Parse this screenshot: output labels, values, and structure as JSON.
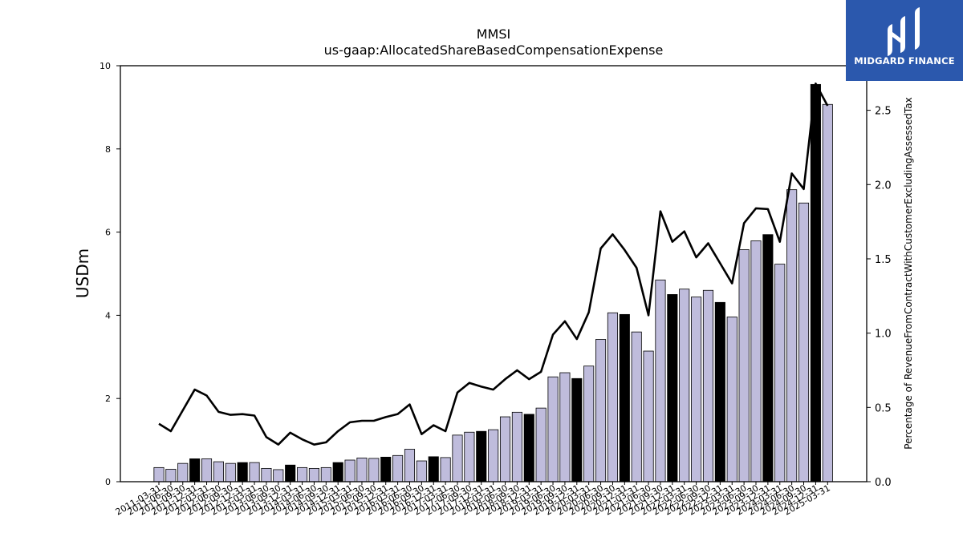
{
  "logo": {
    "text": "MIDGARD FINANCE"
  },
  "chart_data": {
    "type": "bar",
    "title": "MMSI",
    "subtitle": "us-gaap:AllocatedShareBasedCompensationExpense",
    "ylabel": "USDm",
    "y2label": "Percentage of RevenueFromContractWithCustomerExcludingAssessedTax",
    "ylim": [
      0,
      10
    ],
    "y2lim": [
      0,
      2.8
    ],
    "yticks": [
      "0",
      "2",
      "4",
      "6",
      "8",
      "10"
    ],
    "y2ticks": [
      "0.0",
      "0.5",
      "1.0",
      "1.5",
      "2.0",
      "2.5"
    ],
    "categories": [
      "2011-03-31",
      "2011-06-30",
      "2011-09-30",
      "2011-12-31",
      "2012-03-31",
      "2012-06-30",
      "2012-09-30",
      "2012-12-31",
      "2013-03-31",
      "2013-06-30",
      "2013-09-30",
      "2013-12-31",
      "2014-03-31",
      "2014-06-30",
      "2014-09-30",
      "2014-12-31",
      "2015-03-31",
      "2015-06-30",
      "2015-09-30",
      "2015-12-31",
      "2016-03-31",
      "2016-06-30",
      "2016-09-30",
      "2016-12-31",
      "2017-03-31",
      "2017-06-30",
      "2017-09-30",
      "2017-12-31",
      "2018-03-31",
      "2018-06-30",
      "2018-09-30",
      "2018-12-31",
      "2019-03-31",
      "2019-06-30",
      "2019-09-30",
      "2019-12-31",
      "2020-03-31",
      "2020-06-30",
      "2020-09-30",
      "2020-12-31",
      "2021-03-31",
      "2021-06-30",
      "2021-09-30",
      "2021-12-31",
      "2022-03-31",
      "2022-06-30",
      "2022-09-30",
      "2022-12-31",
      "2023-03-31",
      "2023-06-30",
      "2023-09-30",
      "2023-12-31",
      "2024-03-31",
      "2024-06-30",
      "2024-09-30",
      "2024-12-31",
      "2025-03-31"
    ],
    "series": [
      {
        "type": "bar",
        "axis": "left",
        "values": [
          0.34,
          0.3,
          0.44,
          0.55,
          0.55,
          0.48,
          0.44,
          0.46,
          0.46,
          0.32,
          0.29,
          0.4,
          0.34,
          0.32,
          0.34,
          0.46,
          0.52,
          0.57,
          0.56,
          0.59,
          0.63,
          0.78,
          0.5,
          0.6,
          0.58,
          1.12,
          1.19,
          1.21,
          1.25,
          1.56,
          1.67,
          1.62,
          1.77,
          2.52,
          2.62,
          2.48,
          2.78,
          3.42,
          4.06,
          4.02,
          3.6,
          3.14,
          4.85,
          4.5,
          4.63,
          4.44,
          4.6,
          4.31,
          3.96,
          5.58,
          5.79,
          5.94,
          5.23,
          7.02,
          6.7,
          9.55,
          9.07
        ],
        "highlight": [
          false,
          false,
          false,
          true,
          false,
          false,
          false,
          true,
          false,
          false,
          false,
          true,
          false,
          false,
          false,
          true,
          false,
          false,
          false,
          true,
          false,
          false,
          false,
          true,
          false,
          false,
          false,
          true,
          false,
          false,
          false,
          true,
          false,
          false,
          false,
          true,
          false,
          false,
          false,
          true,
          false,
          false,
          false,
          true,
          false,
          false,
          false,
          true,
          false,
          false,
          false,
          true,
          false,
          false,
          false,
          true,
          false
        ],
        "color": "#bfbcdc",
        "highlight_color": "#000000"
      },
      {
        "type": "line",
        "axis": "right",
        "color": "#000000",
        "values": [
          0.39,
          0.34,
          0.48,
          0.62,
          0.58,
          0.47,
          0.45,
          0.455,
          0.445,
          0.3,
          0.25,
          0.33,
          0.285,
          0.25,
          0.265,
          0.34,
          0.4,
          0.41,
          0.41,
          0.435,
          0.455,
          0.52,
          0.32,
          0.38,
          0.34,
          0.6,
          0.665,
          0.64,
          0.62,
          0.69,
          0.75,
          0.69,
          0.74,
          0.99,
          1.08,
          0.96,
          1.14,
          1.57,
          1.665,
          1.56,
          1.44,
          1.12,
          1.82,
          1.615,
          1.685,
          1.51,
          1.605,
          1.47,
          1.335,
          1.74,
          1.84,
          1.835,
          1.615,
          2.075,
          1.97,
          2.68,
          2.53
        ]
      }
    ]
  }
}
